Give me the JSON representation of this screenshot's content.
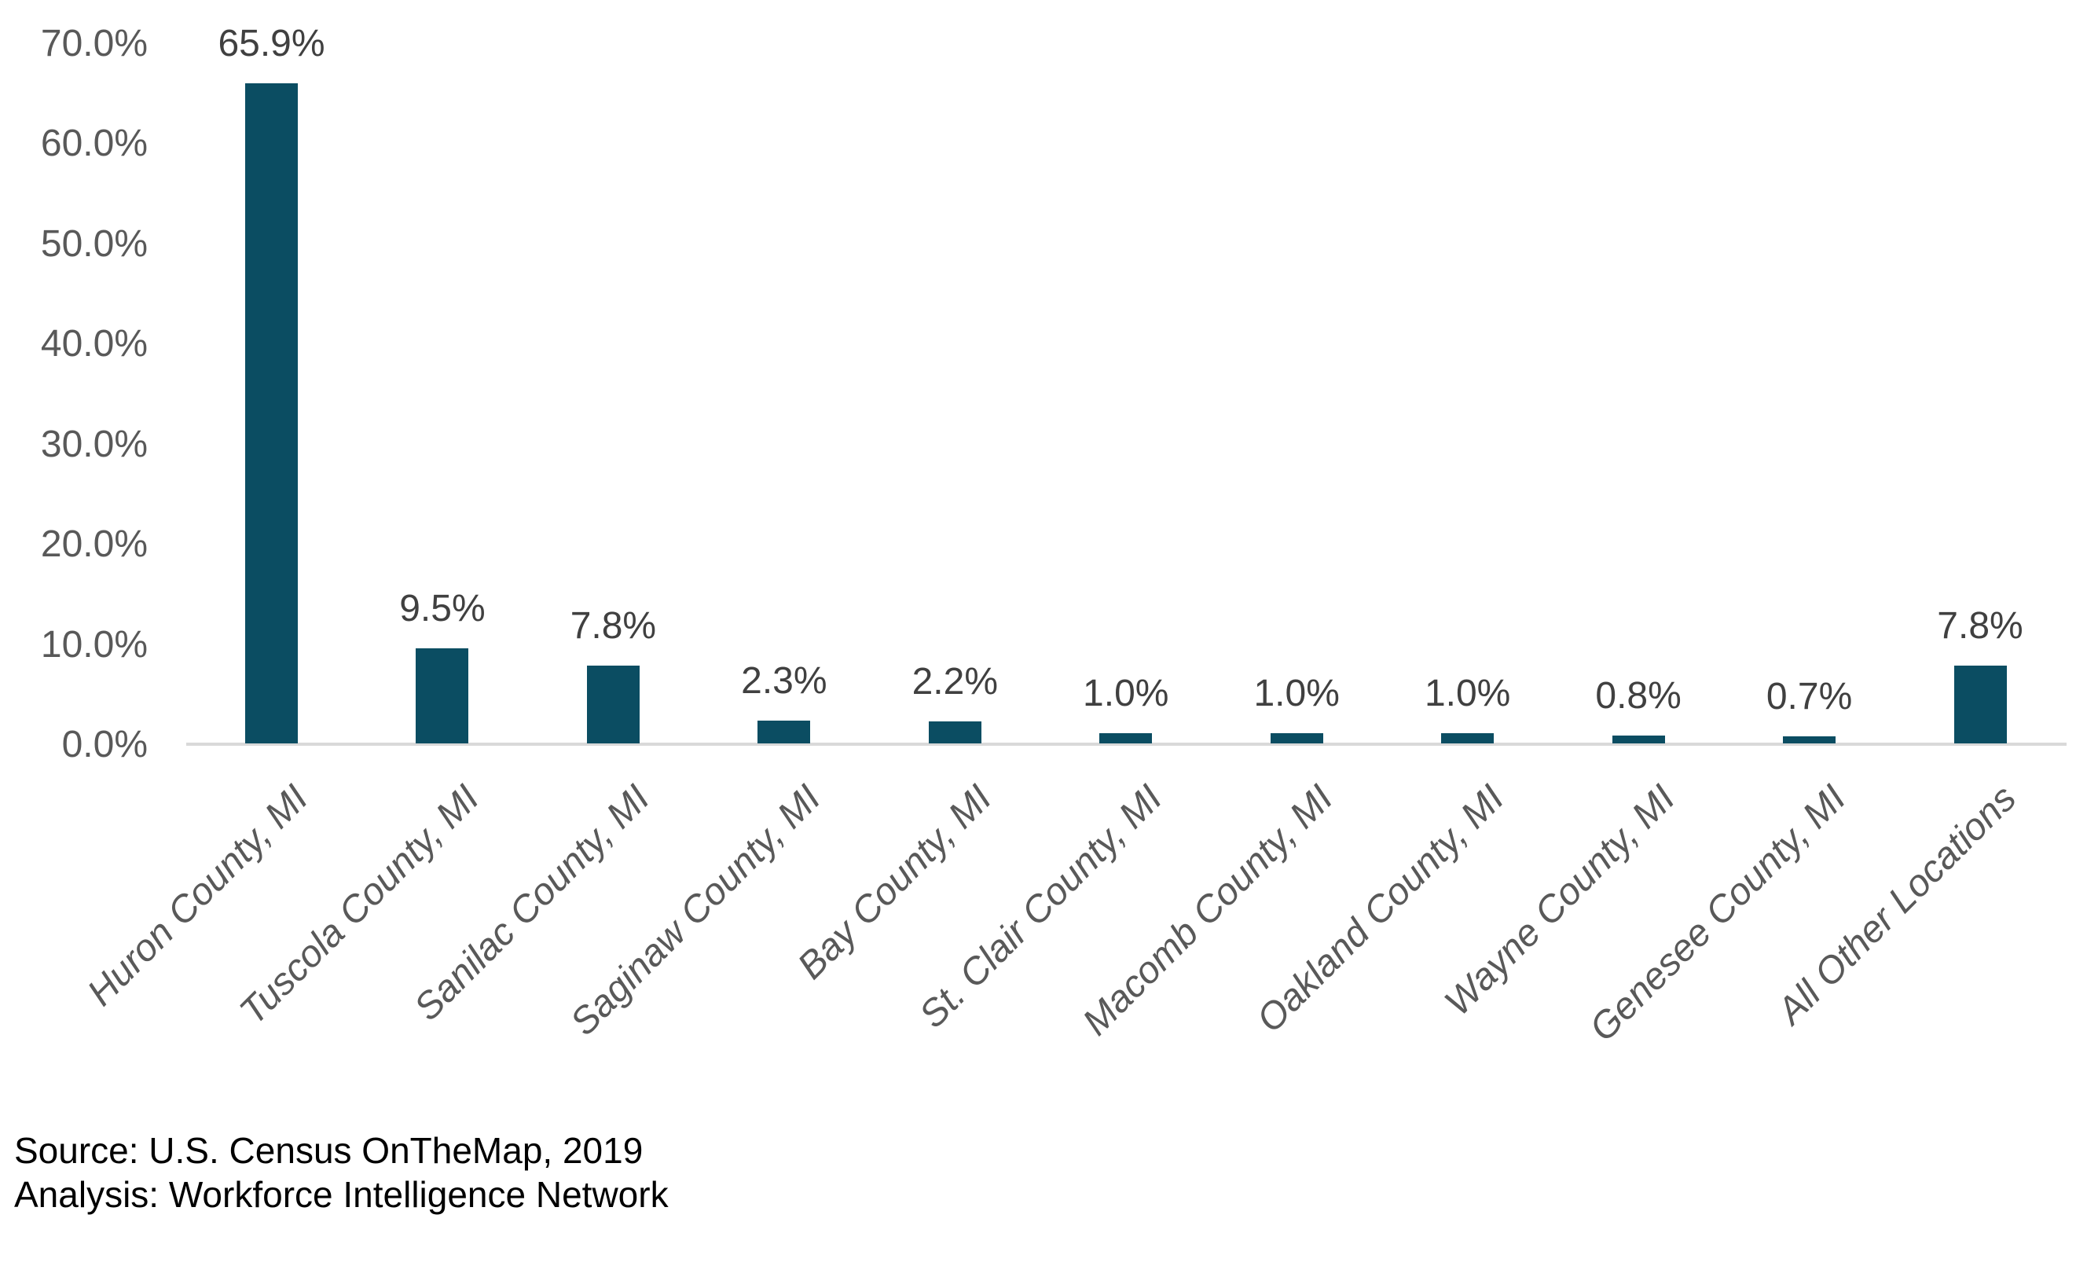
{
  "chart_data": {
    "type": "bar",
    "categories": [
      "Huron County, MI",
      "Tuscola County, MI",
      "Sanilac County, MI",
      "Saginaw County, MI",
      "Bay County, MI",
      "St. Clair County, MI",
      "Macomb County, MI",
      "Oakland County, MI",
      "Wayne County, MI",
      "Genesee County, MI",
      "All Other Locations"
    ],
    "values": [
      65.9,
      9.5,
      7.8,
      2.3,
      2.2,
      1.0,
      1.0,
      1.0,
      0.8,
      0.7,
      7.8
    ],
    "data_labels": [
      "65.9%",
      "9.5%",
      "7.8%",
      "2.3%",
      "2.2%",
      "1.0%",
      "1.0%",
      "1.0%",
      "0.8%",
      "0.7%",
      "7.8%"
    ],
    "y_ticks": [
      "0.0%",
      "10.0%",
      "20.0%",
      "30.0%",
      "40.0%",
      "50.0%",
      "60.0%",
      "70.0%"
    ],
    "ylim": [
      0,
      70
    ],
    "y_tick_step": 10,
    "title": "",
    "xlabel": "",
    "ylabel": "",
    "grid": false,
    "legend": false,
    "bar_color": "#0B4D62",
    "axis_label_color": "#595959",
    "data_label_color": "#404040",
    "axis_line_color": "#D9D9D9",
    "category_label_style": "italic, rotated 45 degrees"
  },
  "footer": {
    "source": "Source: U.S. Census OnTheMap, 2019",
    "analysis": "Analysis: Workforce Intelligence Network"
  }
}
